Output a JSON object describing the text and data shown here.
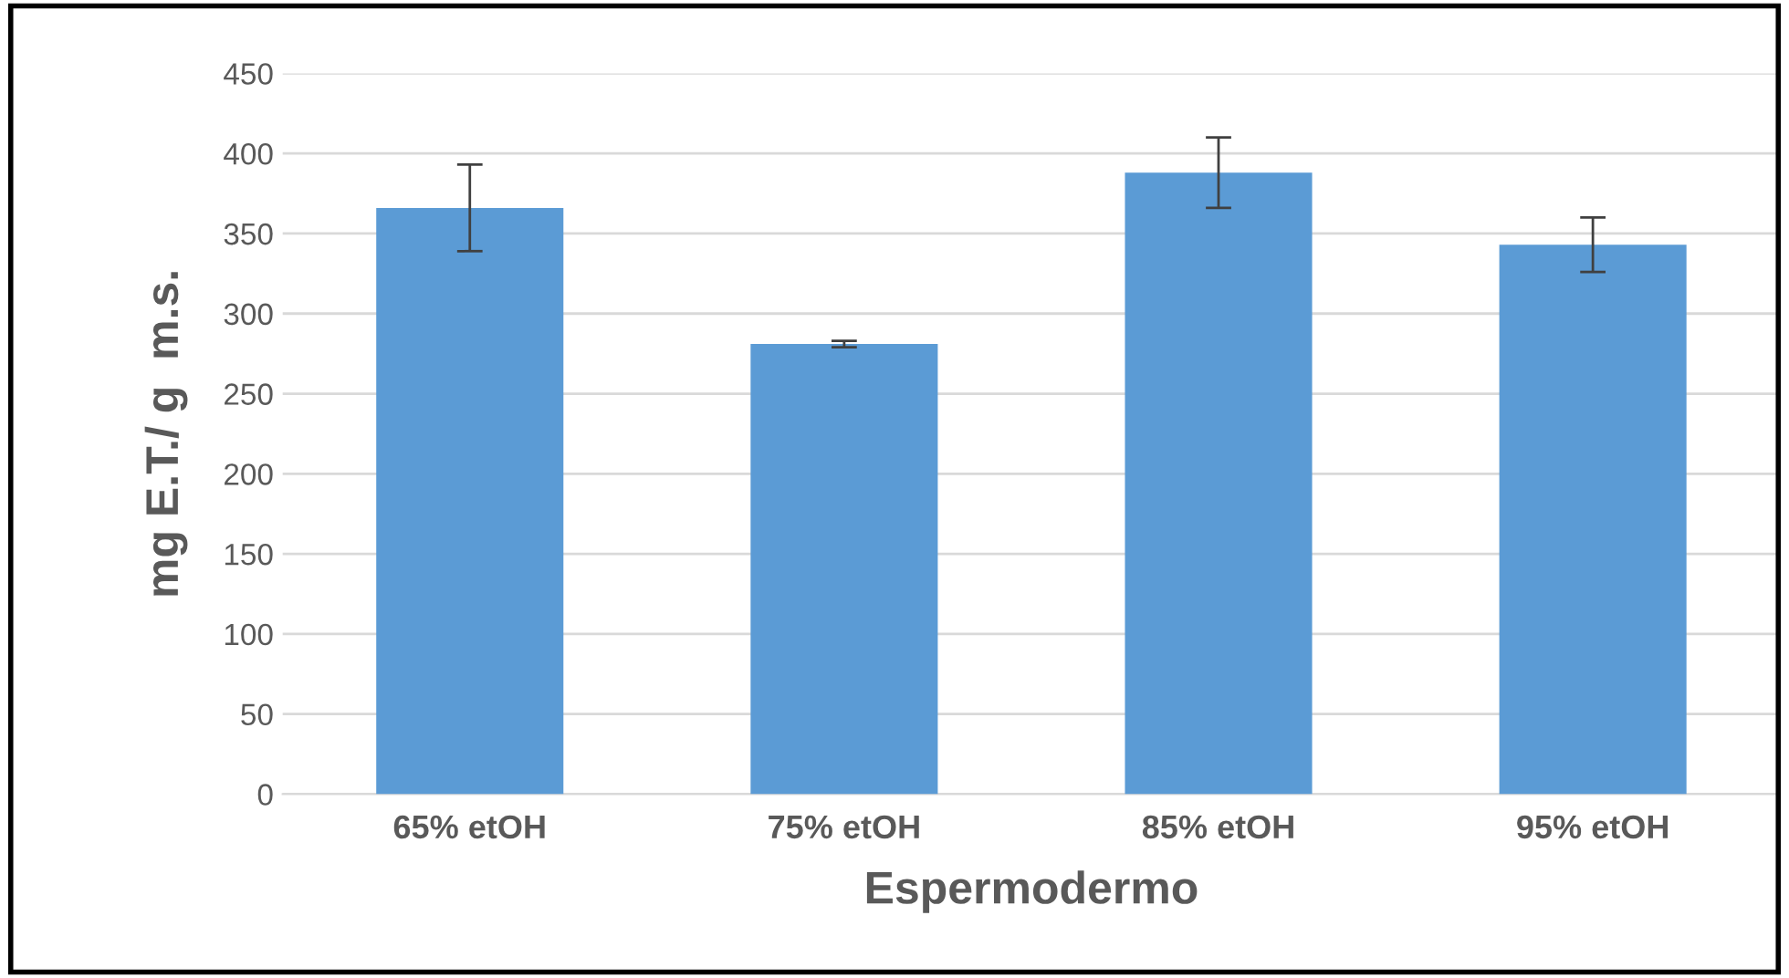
{
  "chart_data": {
    "type": "bar",
    "xlabel": "Espermodermo",
    "ylabel": "mg E.T./ g  m.s.",
    "categories": [
      "65% etOH",
      "75% etOH",
      "85% etOH",
      "95% etOH"
    ],
    "values": [
      366,
      281,
      388,
      343
    ],
    "errors": [
      27,
      2,
      22,
      17
    ],
    "color": "#5b9bd5",
    "ylim": [
      0,
      450
    ],
    "yticks": [
      0,
      50,
      100,
      150,
      200,
      250,
      300,
      350,
      400,
      450
    ],
    "grid": "y"
  }
}
